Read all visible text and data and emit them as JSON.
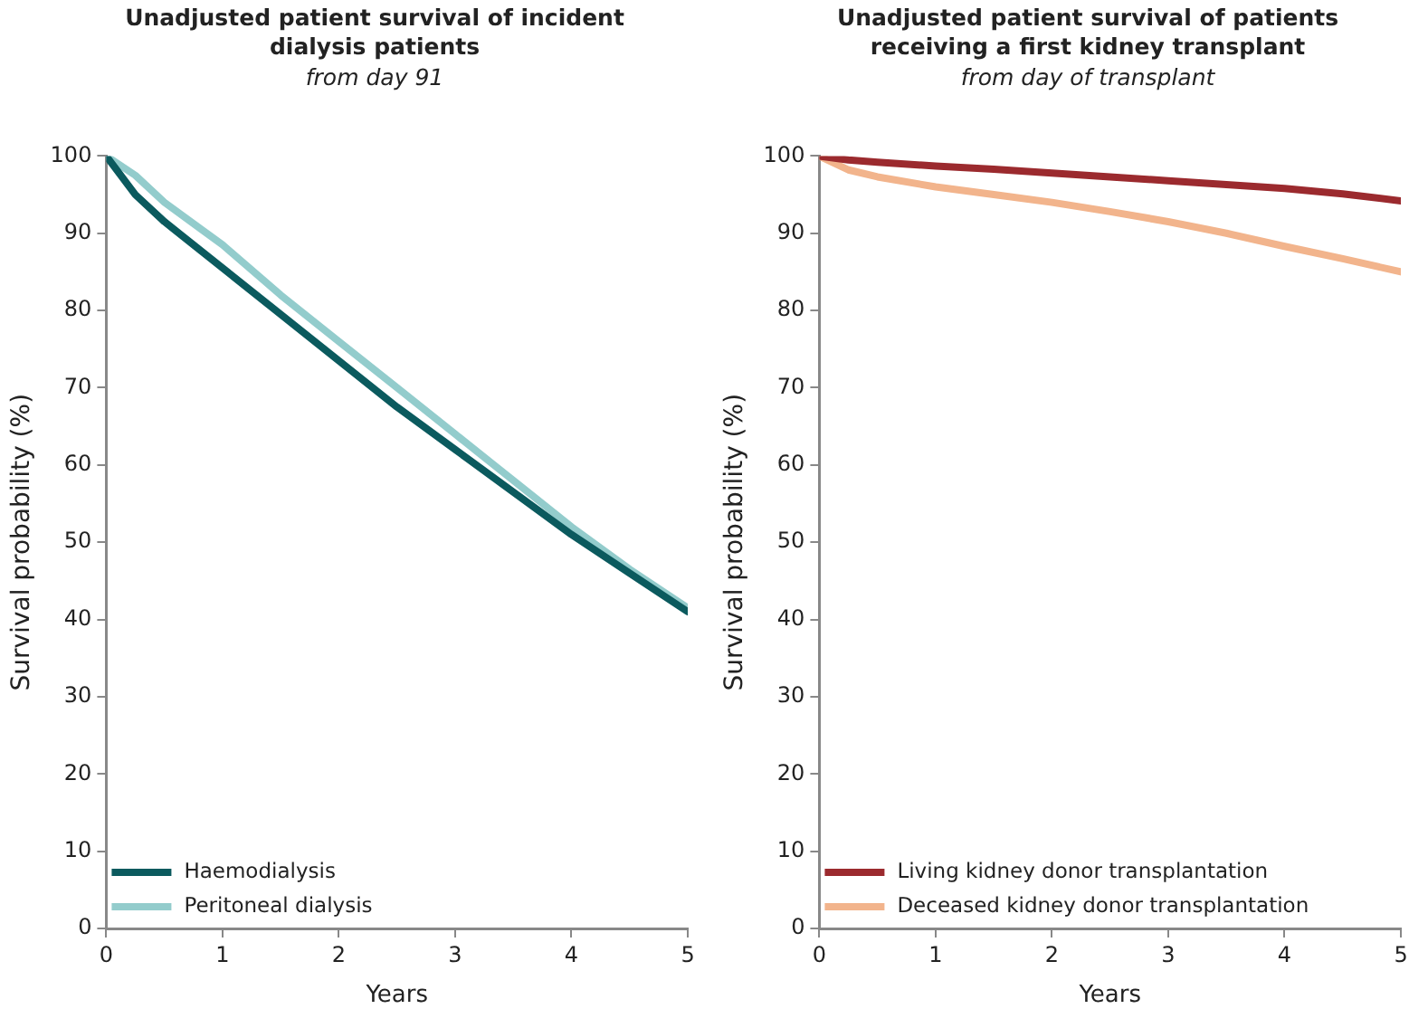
{
  "chart_data": [
    {
      "type": "line",
      "title": "Unadjusted patient survival of incident dialysis patients",
      "subtitle": "from day 91",
      "xlabel": "Years",
      "ylabel": "Survival probability (%)",
      "x": [
        0,
        0.25,
        0.5,
        1,
        1.5,
        2,
        2.5,
        3,
        3.5,
        4,
        4.5,
        5
      ],
      "series": [
        {
          "name": "Haemodialysis",
          "color": "#0b5a5e",
          "values": [
            100,
            95,
            91.5,
            85.5,
            79.5,
            73.5,
            67.5,
            62,
            56.5,
            51,
            46,
            41
          ]
        },
        {
          "name": "Peritoneal dialysis",
          "color": "#93cccc",
          "values": [
            100,
            97.5,
            94,
            88.5,
            82,
            76,
            70,
            64,
            58,
            52,
            46.5,
            41.5
          ]
        }
      ],
      "xlim": [
        0,
        5
      ],
      "xticks": [
        0,
        1,
        2,
        3,
        4,
        5
      ],
      "ylim": [
        0,
        100
      ],
      "yticks": [
        0,
        10,
        20,
        30,
        40,
        50,
        60,
        70,
        80,
        90,
        100
      ],
      "grid": false,
      "legend": "bottom left",
      "marker": "none",
      "line_style": "solid"
    },
    {
      "type": "line",
      "title": "Unadjusted patient survival of patients receiving a first kidney transplant",
      "subtitle": "from day of transplant",
      "xlabel": "Years",
      "ylabel": "Survival probability (%)",
      "x": [
        0,
        0.25,
        0.5,
        1,
        1.5,
        2,
        2.5,
        3,
        3.5,
        4,
        4.5,
        5
      ],
      "series": [
        {
          "name": "Living kidney donor transplantation",
          "color": "#9b2a2e",
          "values": [
            100,
            99.5,
            99.2,
            98.7,
            98.3,
            97.8,
            97.3,
            96.8,
            96.3,
            95.8,
            95.1,
            94.2
          ]
        },
        {
          "name": "Deceased kidney donor transplantation",
          "color": "#f2b48c",
          "values": [
            100,
            98.2,
            97.3,
            96,
            95,
            94,
            92.8,
            91.5,
            90,
            88.3,
            86.7,
            85
          ]
        }
      ],
      "xlim": [
        0,
        5
      ],
      "xticks": [
        0,
        1,
        2,
        3,
        4,
        5
      ],
      "ylim": [
        0,
        100
      ],
      "yticks": [
        0,
        10,
        20,
        30,
        40,
        50,
        60,
        70,
        80,
        90,
        100
      ],
      "grid": false,
      "legend": "bottom left",
      "marker": "none",
      "line_style": "solid"
    }
  ]
}
